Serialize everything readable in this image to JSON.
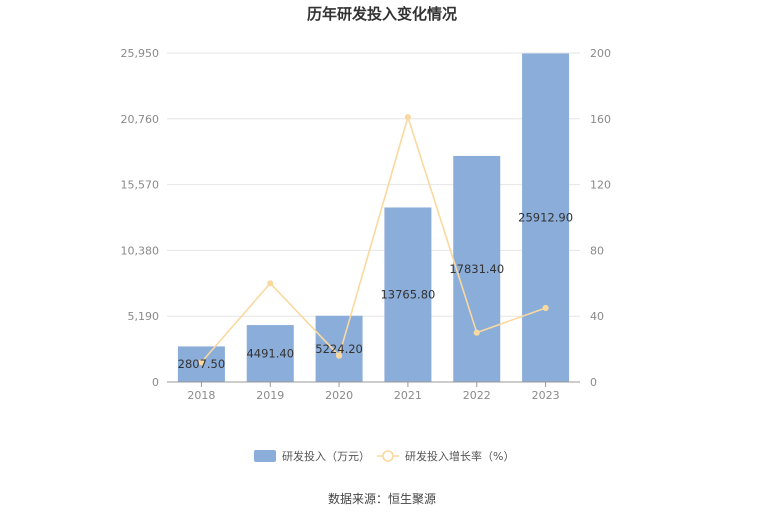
{
  "chart_data": {
    "type": "bar",
    "title": "历年研发投入变化情况",
    "categories": [
      "2018",
      "2019",
      "2020",
      "2021",
      "2022",
      "2023"
    ],
    "series": [
      {
        "name": "研发投入（万元）",
        "type": "bar",
        "axis": "left",
        "values": [
          2807.5,
          4491.4,
          5224.2,
          13765.8,
          17831.4,
          25912.9
        ],
        "labels": [
          "2807.50",
          "4491.40",
          "5224.20",
          "13765.80",
          "17831.40",
          "25912.90"
        ],
        "color": "#8badd9"
      },
      {
        "name": "研发投入增长率（%）",
        "type": "line",
        "axis": "right",
        "values": [
          12,
          60,
          16,
          161,
          30,
          45
        ],
        "color": "#f9d9a0"
      }
    ],
    "y_left": {
      "ylim": [
        0,
        25950
      ],
      "ticks": [
        "0",
        "5,190",
        "10,380",
        "15,570",
        "20,760",
        "25,950"
      ],
      "tick_values": [
        0,
        5190,
        10380,
        15570,
        20760,
        25950
      ]
    },
    "y_right": {
      "ylim": [
        0,
        200
      ],
      "ticks": [
        "0",
        "40",
        "80",
        "120",
        "160",
        "200"
      ],
      "tick_values": [
        0,
        40,
        80,
        120,
        160,
        200
      ]
    },
    "grid": true,
    "legend_position": "bottom-center",
    "source": "数据来源：恒生聚源"
  }
}
